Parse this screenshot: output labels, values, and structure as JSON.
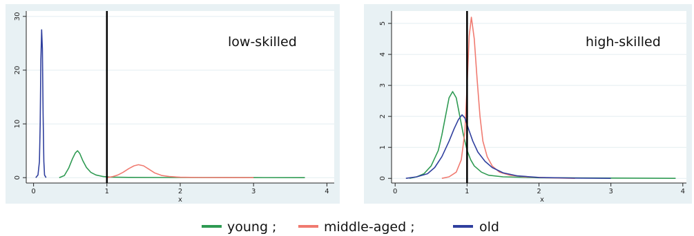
{
  "legend": {
    "items": [
      {
        "label": "young ;",
        "color": "#2e9a52"
      },
      {
        "label": "middle-aged ;",
        "color": "#f07a70"
      },
      {
        "label": "old",
        "color": "#2f3f9e"
      }
    ]
  },
  "colors": {
    "panel_background": "#e8f1f4",
    "plot_background": "#ffffff",
    "reference_line": "#000000"
  },
  "chart_data": [
    {
      "type": "line",
      "panel_label": "low-skilled",
      "xlabel": "x",
      "ylabel": "",
      "xlim": [
        -0.1,
        4.1
      ],
      "ylim": [
        -1,
        31
      ],
      "xticks": [
        0,
        1,
        2,
        3,
        4
      ],
      "xtick_labels": [
        "0",
        "1",
        "2",
        "3",
        "4"
      ],
      "yticks": [
        0,
        10,
        20,
        30
      ],
      "ytick_labels": [
        "0",
        "10",
        "20",
        "30"
      ],
      "grid": true,
      "reference_line_x": 1,
      "series": [
        {
          "name": "young",
          "x": [
            0.35,
            0.42,
            0.48,
            0.53,
            0.57,
            0.6,
            0.63,
            0.67,
            0.72,
            0.78,
            0.85,
            0.95,
            1.05,
            1.3,
            1.8,
            2.5,
            3.0,
            3.7
          ],
          "y": [
            0.0,
            0.4,
            1.8,
            3.5,
            4.6,
            5.0,
            4.5,
            3.2,
            1.9,
            1.0,
            0.5,
            0.2,
            0.1,
            0.05,
            0.03,
            0.02,
            0.01,
            0.0
          ]
        },
        {
          "name": "middle-aged",
          "x": [
            1.0,
            1.08,
            1.15,
            1.22,
            1.3,
            1.37,
            1.43,
            1.5,
            1.57,
            1.65,
            1.75,
            1.85,
            2.0,
            2.3,
            2.6,
            3.0
          ],
          "y": [
            0.0,
            0.2,
            0.5,
            1.0,
            1.7,
            2.2,
            2.4,
            2.2,
            1.6,
            0.9,
            0.4,
            0.2,
            0.08,
            0.03,
            0.01,
            0.0
          ]
        },
        {
          "name": "old",
          "x": [
            0.03,
            0.06,
            0.08,
            0.09,
            0.1,
            0.11,
            0.12,
            0.13,
            0.14,
            0.15,
            0.17
          ],
          "y": [
            0.0,
            0.5,
            3.0,
            10.0,
            22.0,
            27.5,
            24.0,
            12.0,
            3.0,
            0.5,
            0.0
          ]
        }
      ]
    },
    {
      "type": "line",
      "panel_label": "high-skilled",
      "xlabel": "x",
      "ylabel": "",
      "xlim": [
        -0.05,
        4.05
      ],
      "ylim": [
        -0.15,
        5.4
      ],
      "xticks": [
        0,
        1,
        2,
        3,
        4
      ],
      "xtick_labels": [
        "0",
        "1",
        "2",
        "3",
        "4"
      ],
      "yticks": [
        0,
        1,
        2,
        3,
        4,
        5
      ],
      "ytick_labels": [
        "0",
        "1",
        "2",
        "3",
        "4",
        "5"
      ],
      "grid": true,
      "reference_line_x": 1,
      "series": [
        {
          "name": "young",
          "x": [
            0.2,
            0.3,
            0.4,
            0.5,
            0.6,
            0.65,
            0.7,
            0.75,
            0.8,
            0.85,
            0.9,
            0.95,
            1.0,
            1.05,
            1.1,
            1.2,
            1.3,
            1.5,
            2.0,
            3.0,
            3.9
          ],
          "y": [
            0.0,
            0.05,
            0.15,
            0.4,
            0.9,
            1.4,
            2.0,
            2.6,
            2.8,
            2.6,
            2.0,
            1.4,
            0.9,
            0.6,
            0.4,
            0.2,
            0.1,
            0.05,
            0.02,
            0.01,
            0.0
          ]
        },
        {
          "name": "middle-aged",
          "x": [
            0.65,
            0.75,
            0.85,
            0.92,
            0.97,
            1.0,
            1.03,
            1.06,
            1.1,
            1.14,
            1.18,
            1.22,
            1.28,
            1.35,
            1.45,
            1.6,
            1.8,
            2.1,
            2.5
          ],
          "y": [
            0.0,
            0.05,
            0.2,
            0.6,
            1.5,
            3.0,
            4.6,
            5.2,
            4.5,
            3.2,
            2.0,
            1.2,
            0.7,
            0.4,
            0.2,
            0.1,
            0.05,
            0.02,
            0.0
          ]
        },
        {
          "name": "old",
          "x": [
            0.15,
            0.3,
            0.45,
            0.55,
            0.65,
            0.75,
            0.82,
            0.88,
            0.93,
            0.97,
            1.02,
            1.08,
            1.15,
            1.25,
            1.35,
            1.5,
            1.7,
            2.0,
            2.5,
            3.0
          ],
          "y": [
            0.0,
            0.05,
            0.15,
            0.35,
            0.7,
            1.2,
            1.6,
            1.9,
            2.05,
            1.95,
            1.6,
            1.2,
            0.85,
            0.55,
            0.35,
            0.18,
            0.08,
            0.03,
            0.01,
            0.0
          ]
        }
      ]
    }
  ]
}
